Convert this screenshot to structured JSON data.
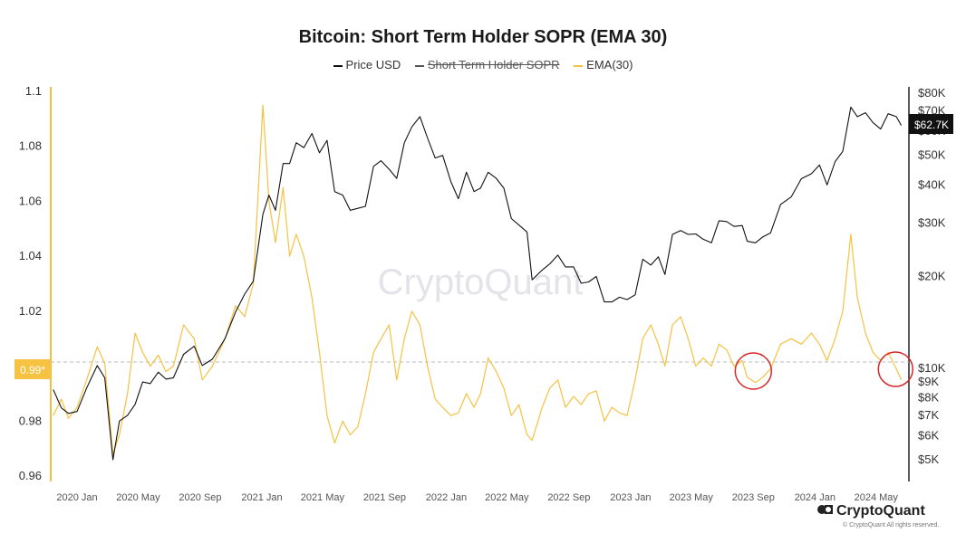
{
  "chart_data": {
    "type": "line",
    "title": "Bitcoin: Short Term Holder SOPR (EMA 30)",
    "legend": [
      {
        "name": "Price USD",
        "color": "#111111",
        "hidden": false
      },
      {
        "name": "Short Term Holder SOPR",
        "color": "#555555",
        "hidden": true
      },
      {
        "name": "EMA(30)",
        "color": "#F0C040",
        "hidden": false
      }
    ],
    "left_axis": {
      "ticks": [
        "1.1",
        "1.08",
        "1.06",
        "1.04",
        "1.02",
        "1",
        "0.98",
        "0.96"
      ],
      "range": [
        0.955,
        1.1
      ],
      "color": "#F0C040"
    },
    "right_axis": {
      "ticks": [
        "$80K",
        "$70K",
        "$60K",
        "$50K",
        "$40K",
        "$30K",
        "$20K",
        "$10K",
        "$9K",
        "$8K",
        "$7K",
        "$6K",
        "$5K"
      ],
      "scale": "log"
    },
    "x_ticks": [
      "2020 Jan",
      "2020 May",
      "2020 Sep",
      "2021 Jan",
      "2021 May",
      "2021 Sep",
      "2022 Jan",
      "2022 May",
      "2022 Sep",
      "2023 Jan",
      "2023 May",
      "2023 Sep",
      "2024 Jan",
      "2024 May"
    ],
    "current_sopr_label": "0.99*",
    "current_price_label": "$62.7K",
    "reference_line": 1.0,
    "watermark": "CryptoQuant",
    "highlight_dates": [
      "2023-09",
      "2024-06"
    ],
    "ema30_series": {
      "name": "EMA(30)",
      "points": [
        [
          "2019-11-15",
          0.982
        ],
        [
          "2019-12-01",
          0.988
        ],
        [
          "2019-12-15",
          0.981
        ],
        [
          "2020-01-01",
          0.985
        ],
        [
          "2020-01-20",
          0.995
        ],
        [
          "2020-02-10",
          1.007
        ],
        [
          "2020-02-25",
          1.001
        ],
        [
          "2020-03-12",
          0.968
        ],
        [
          "2020-03-25",
          0.975
        ],
        [
          "2020-04-10",
          0.99
        ],
        [
          "2020-04-25",
          1.012
        ],
        [
          "2020-05-10",
          1.005
        ],
        [
          "2020-05-25",
          1.0
        ],
        [
          "2020-06-10",
          1.004
        ],
        [
          "2020-06-25",
          0.998
        ],
        [
          "2020-07-10",
          1.0
        ],
        [
          "2020-07-30",
          1.015
        ],
        [
          "2020-08-20",
          1.01
        ],
        [
          "2020-09-05",
          0.995
        ],
        [
          "2020-09-25",
          1.0
        ],
        [
          "2020-10-20",
          1.01
        ],
        [
          "2020-11-10",
          1.022
        ],
        [
          "2020-11-28",
          1.018
        ],
        [
          "2020-12-15",
          1.03
        ],
        [
          "2021-01-03",
          1.095
        ],
        [
          "2021-01-15",
          1.06
        ],
        [
          "2021-01-28",
          1.045
        ],
        [
          "2021-02-12",
          1.065
        ],
        [
          "2021-02-25",
          1.04
        ],
        [
          "2021-03-10",
          1.048
        ],
        [
          "2021-03-25",
          1.04
        ],
        [
          "2021-04-10",
          1.025
        ],
        [
          "2021-04-25",
          1.005
        ],
        [
          "2021-05-10",
          0.982
        ],
        [
          "2021-05-25",
          0.972
        ],
        [
          "2021-06-10",
          0.98
        ],
        [
          "2021-06-25",
          0.975
        ],
        [
          "2021-07-10",
          0.978
        ],
        [
          "2021-07-25",
          0.99
        ],
        [
          "2021-08-10",
          1.005
        ],
        [
          "2021-08-25",
          1.01
        ],
        [
          "2021-09-10",
          1.015
        ],
        [
          "2021-09-25",
          0.995
        ],
        [
          "2021-10-10",
          1.01
        ],
        [
          "2021-10-25",
          1.02
        ],
        [
          "2021-11-10",
          1.015
        ],
        [
          "2021-11-25",
          1.0
        ],
        [
          "2021-12-10",
          0.988
        ],
        [
          "2021-12-25",
          0.985
        ],
        [
          "2022-01-10",
          0.982
        ],
        [
          "2022-01-25",
          0.983
        ],
        [
          "2022-02-10",
          0.99
        ],
        [
          "2022-02-25",
          0.985
        ],
        [
          "2022-03-10",
          0.99
        ],
        [
          "2022-03-25",
          1.003
        ],
        [
          "2022-04-10",
          0.998
        ],
        [
          "2022-04-25",
          0.992
        ],
        [
          "2022-05-10",
          0.982
        ],
        [
          "2022-05-25",
          0.986
        ],
        [
          "2022-06-10",
          0.975
        ],
        [
          "2022-06-20",
          0.973
        ],
        [
          "2022-07-10",
          0.985
        ],
        [
          "2022-07-25",
          0.992
        ],
        [
          "2022-08-10",
          0.995
        ],
        [
          "2022-08-25",
          0.985
        ],
        [
          "2022-09-10",
          0.989
        ],
        [
          "2022-09-25",
          0.986
        ],
        [
          "2022-10-10",
          0.99
        ],
        [
          "2022-10-25",
          0.991
        ],
        [
          "2022-11-10",
          0.98
        ],
        [
          "2022-11-25",
          0.985
        ],
        [
          "2022-12-10",
          0.983
        ],
        [
          "2022-12-25",
          0.982
        ],
        [
          "2023-01-10",
          0.995
        ],
        [
          "2023-01-25",
          1.01
        ],
        [
          "2023-02-10",
          1.015
        ],
        [
          "2023-02-25",
          1.008
        ],
        [
          "2023-03-10",
          1.0
        ],
        [
          "2023-03-25",
          1.015
        ],
        [
          "2023-04-10",
          1.018
        ],
        [
          "2023-04-25",
          1.01
        ],
        [
          "2023-05-10",
          1.0
        ],
        [
          "2023-05-25",
          1.003
        ],
        [
          "2023-06-10",
          1.0
        ],
        [
          "2023-06-25",
          1.008
        ],
        [
          "2023-07-10",
          1.006
        ],
        [
          "2023-07-25",
          1.0
        ],
        [
          "2023-08-10",
          1.002
        ],
        [
          "2023-08-20",
          0.996
        ],
        [
          "2023-09-05",
          0.994
        ],
        [
          "2023-09-20",
          0.996
        ],
        [
          "2023-10-05",
          0.999
        ],
        [
          "2023-10-25",
          1.008
        ],
        [
          "2023-11-15",
          1.01
        ],
        [
          "2023-12-05",
          1.008
        ],
        [
          "2023-12-25",
          1.012
        ],
        [
          "2024-01-10",
          1.008
        ],
        [
          "2024-01-25",
          1.002
        ],
        [
          "2024-02-10",
          1.01
        ],
        [
          "2024-02-25",
          1.02
        ],
        [
          "2024-03-12",
          1.048
        ],
        [
          "2024-03-25",
          1.025
        ],
        [
          "2024-04-10",
          1.012
        ],
        [
          "2024-04-25",
          1.005
        ],
        [
          "2024-05-10",
          1.002
        ],
        [
          "2024-05-25",
          1.005
        ],
        [
          "2024-06-10",
          0.999
        ],
        [
          "2024-06-20",
          0.995
        ]
      ]
    },
    "price_series": {
      "name": "Price USD",
      "points": [
        [
          "2019-11-15",
          8500
        ],
        [
          "2019-12-01",
          7400
        ],
        [
          "2019-12-15",
          7100
        ],
        [
          "2020-01-01",
          7200
        ],
        [
          "2020-01-20",
          8600
        ],
        [
          "2020-02-10",
          10200
        ],
        [
          "2020-02-25",
          9300
        ],
        [
          "2020-03-12",
          5000
        ],
        [
          "2020-03-25",
          6700
        ],
        [
          "2020-04-10",
          7000
        ],
        [
          "2020-04-25",
          7600
        ],
        [
          "2020-05-10",
          9000
        ],
        [
          "2020-05-25",
          8900
        ],
        [
          "2020-06-10",
          9700
        ],
        [
          "2020-06-25",
          9200
        ],
        [
          "2020-07-10",
          9300
        ],
        [
          "2020-07-30",
          11100
        ],
        [
          "2020-08-20",
          11800
        ],
        [
          "2020-09-05",
          10200
        ],
        [
          "2020-09-25",
          10700
        ],
        [
          "2020-10-20",
          12500
        ],
        [
          "2020-11-10",
          15300
        ],
        [
          "2020-11-28",
          17500
        ],
        [
          "2020-12-15",
          19300
        ],
        [
          "2021-01-03",
          32000
        ],
        [
          "2021-01-15",
          37000
        ],
        [
          "2021-01-28",
          33000
        ],
        [
          "2021-02-12",
          47000
        ],
        [
          "2021-02-25",
          47000
        ],
        [
          "2021-03-10",
          55000
        ],
        [
          "2021-03-25",
          53000
        ],
        [
          "2021-04-10",
          59000
        ],
        [
          "2021-04-25",
          51000
        ],
        [
          "2021-05-10",
          56000
        ],
        [
          "2021-05-25",
          38000
        ],
        [
          "2021-06-10",
          37000
        ],
        [
          "2021-06-25",
          33000
        ],
        [
          "2021-07-10",
          33500
        ],
        [
          "2021-07-25",
          34000
        ],
        [
          "2021-08-10",
          46000
        ],
        [
          "2021-08-25",
          48000
        ],
        [
          "2021-09-10",
          45000
        ],
        [
          "2021-09-25",
          42000
        ],
        [
          "2021-10-10",
          55000
        ],
        [
          "2021-10-25",
          62000
        ],
        [
          "2021-11-10",
          67000
        ],
        [
          "2021-11-25",
          57000
        ],
        [
          "2021-12-10",
          49000
        ],
        [
          "2021-12-25",
          50000
        ],
        [
          "2022-01-10",
          41000
        ],
        [
          "2022-01-25",
          36000
        ],
        [
          "2022-02-10",
          44000
        ],
        [
          "2022-02-25",
          38000
        ],
        [
          "2022-03-10",
          39000
        ],
        [
          "2022-03-25",
          44000
        ],
        [
          "2022-04-10",
          42000
        ],
        [
          "2022-04-25",
          39000
        ],
        [
          "2022-05-10",
          31000
        ],
        [
          "2022-05-25",
          29500
        ],
        [
          "2022-06-10",
          28000
        ],
        [
          "2022-06-20",
          19500
        ],
        [
          "2022-07-10",
          21000
        ],
        [
          "2022-07-25",
          22000
        ],
        [
          "2022-08-10",
          23500
        ],
        [
          "2022-08-25",
          21500
        ],
        [
          "2022-09-10",
          21500
        ],
        [
          "2022-09-25",
          19000
        ],
        [
          "2022-10-10",
          19200
        ],
        [
          "2022-10-25",
          20000
        ],
        [
          "2022-11-10",
          16500
        ],
        [
          "2022-11-25",
          16500
        ],
        [
          "2022-12-10",
          17100
        ],
        [
          "2022-12-25",
          16800
        ],
        [
          "2023-01-10",
          17400
        ],
        [
          "2023-01-25",
          22800
        ],
        [
          "2023-02-10",
          21800
        ],
        [
          "2023-02-25",
          23200
        ],
        [
          "2023-03-10",
          20300
        ],
        [
          "2023-03-25",
          27500
        ],
        [
          "2023-04-10",
          28300
        ],
        [
          "2023-04-25",
          27500
        ],
        [
          "2023-05-10",
          27600
        ],
        [
          "2023-05-25",
          26500
        ],
        [
          "2023-06-10",
          25800
        ],
        [
          "2023-06-25",
          30500
        ],
        [
          "2023-07-10",
          30300
        ],
        [
          "2023-07-25",
          29200
        ],
        [
          "2023-08-10",
          29400
        ],
        [
          "2023-08-20",
          26100
        ],
        [
          "2023-09-05",
          25800
        ],
        [
          "2023-09-20",
          27000
        ],
        [
          "2023-10-05",
          27800
        ],
        [
          "2023-10-25",
          34500
        ],
        [
          "2023-11-15",
          36500
        ],
        [
          "2023-12-05",
          41900
        ],
        [
          "2023-12-25",
          43500
        ],
        [
          "2024-01-10",
          46500
        ],
        [
          "2024-01-25",
          40000
        ],
        [
          "2024-02-10",
          47700
        ],
        [
          "2024-02-25",
          51500
        ],
        [
          "2024-03-12",
          72000
        ],
        [
          "2024-03-25",
          67000
        ],
        [
          "2024-04-10",
          69000
        ],
        [
          "2024-04-25",
          64000
        ],
        [
          "2024-05-10",
          61000
        ],
        [
          "2024-05-25",
          68500
        ],
        [
          "2024-06-10",
          67000
        ],
        [
          "2024-06-20",
          62700
        ]
      ]
    }
  },
  "brand": {
    "name": "CryptoQuant",
    "copyright": "© CryptoQuant All rights reserved."
  }
}
